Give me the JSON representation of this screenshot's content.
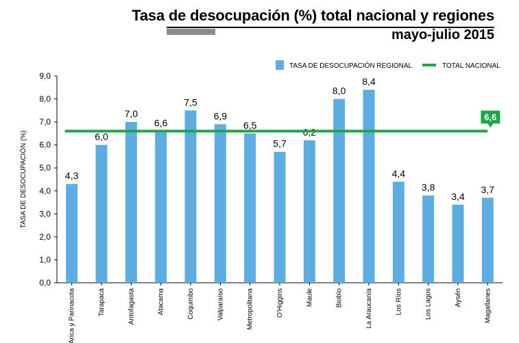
{
  "header": {
    "title": "Tasa de desocupación (%) total nacional y regiones",
    "subtitle": "mayo-julio 2015"
  },
  "colors": {
    "bar": "#5dade2",
    "national_line": "#1fa64a",
    "axis": "#000000",
    "grid": "#d0d0d0"
  },
  "chart_data": {
    "type": "bar",
    "title": "Tasa de desocupación (%) total nacional y regiones",
    "subtitle": "mayo-julio 2015",
    "ylabel": "TASA DE DESOCUPACIÓN (%)",
    "xlabel": "",
    "ylim": [
      0,
      9
    ],
    "yticks": [
      "0,0",
      "1,0",
      "2,0",
      "3,0",
      "4,0",
      "5,0",
      "6,0",
      "7,0",
      "8,0",
      "9,0"
    ],
    "grid": false,
    "legend_position": "top-right",
    "categories": [
      "Arica y Parinacota",
      "Tarapacá",
      "Antofagasta",
      "Atacama",
      "Coquimbo",
      "Valparaíso",
      "Metropolitana",
      "O'Higgins",
      "Maule",
      "Biobío",
      "La Araucanía",
      "Los Ríos",
      "Los Lagos",
      "Aysén",
      "Magallanes"
    ],
    "series": [
      {
        "name": "TASA DE DESOCUPACIÓN REGIONAL",
        "type": "bar",
        "values": [
          4.3,
          6.0,
          7.0,
          6.6,
          7.5,
          6.9,
          6.5,
          5.7,
          6.2,
          8.0,
          8.4,
          4.4,
          3.8,
          3.4,
          3.7
        ],
        "labels": [
          "4,3",
          "6,0",
          "7,0",
          "6,6",
          "7,5",
          "6,9",
          "6,5",
          "5,7",
          "6,2",
          "8,0",
          "8,4",
          "4,4",
          "3,8",
          "3,4",
          "3,7"
        ]
      },
      {
        "name": "TOTAL NACIONAL",
        "type": "line",
        "value": 6.6,
        "label": "6,6"
      }
    ]
  }
}
